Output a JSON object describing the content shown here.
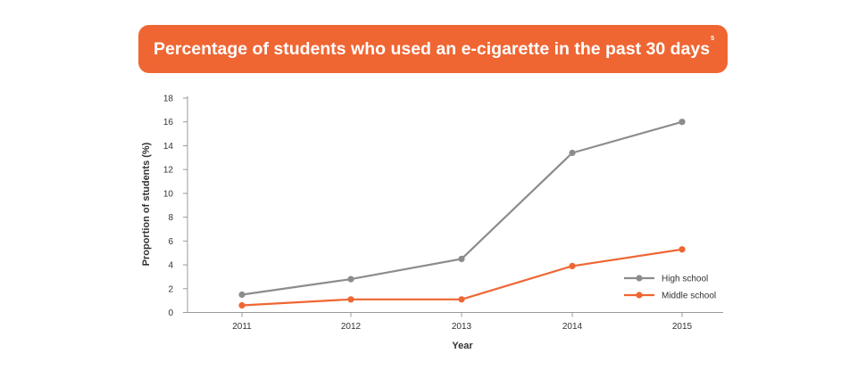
{
  "title": "Percentage of students who used an e-cigarette in the past 30 days",
  "title_superscript": "5",
  "colors": {
    "banner": "#ef6633",
    "high_school": "#8c8c8c",
    "middle_school": "#ef6633",
    "axis": "#999999"
  },
  "chart_data": {
    "type": "line",
    "title": "Percentage of students who used an e-cigarette in the past 30 days",
    "xlabel": "Year",
    "ylabel": "Proportion of students (%)",
    "x": [
      "2011",
      "2012",
      "2013",
      "2014",
      "2015"
    ],
    "ylim": [
      0,
      18
    ],
    "yticks": [
      "0",
      "2",
      "4",
      "6",
      "8",
      "10",
      "12",
      "14",
      "16",
      "18"
    ],
    "grid": false,
    "legend_position": "bottom-right",
    "series": [
      {
        "name": "High school",
        "color": "#8c8c8c",
        "values": [
          1.5,
          2.8,
          4.5,
          13.4,
          16.0
        ]
      },
      {
        "name": "Middle school",
        "color": "#ef6633",
        "values": [
          0.6,
          1.1,
          1.1,
          3.9,
          5.3
        ]
      }
    ]
  }
}
